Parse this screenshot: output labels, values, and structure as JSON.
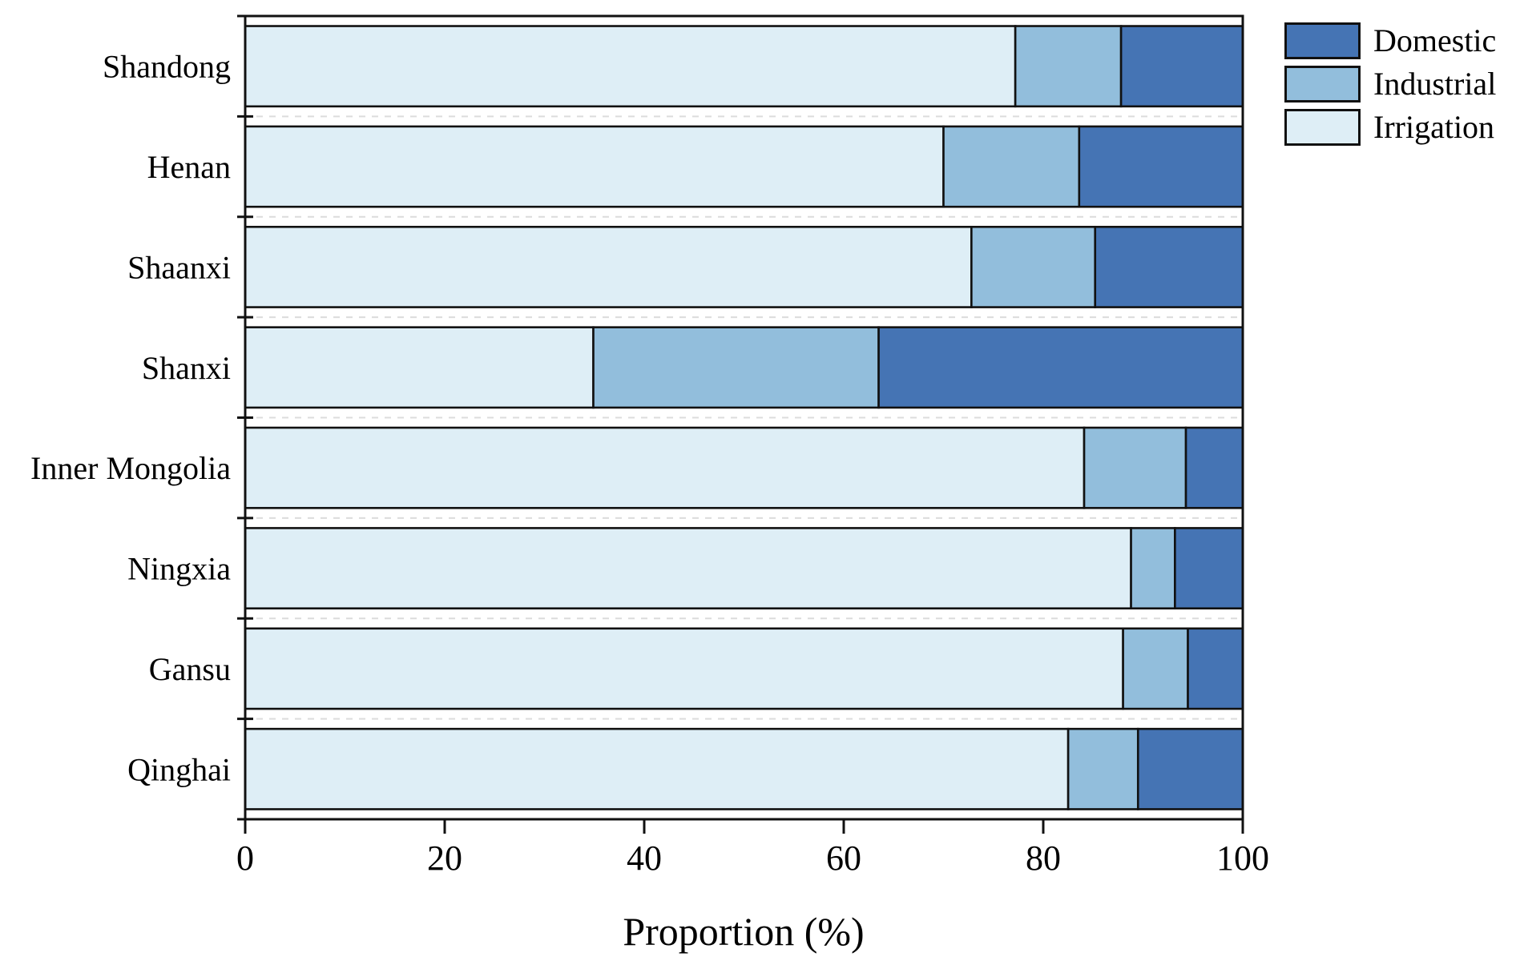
{
  "figure": {
    "background": "#ffffff",
    "axis_color": "#111111",
    "gridline_color": "#dcdcdc"
  },
  "chart_data": {
    "type": "bar",
    "orientation": "horizontal",
    "stacked": true,
    "title": "",
    "xlabel": "Proportion (%)",
    "ylabel": "",
    "xlim": [
      0,
      100
    ],
    "x_ticks": [
      "0",
      "20",
      "40",
      "60",
      "80",
      "100"
    ],
    "x_tick_values": [
      0,
      20,
      40,
      60,
      80,
      100
    ],
    "grid": "light dashed horizontal lines between category rows",
    "legend_position": "top-right outside plot",
    "legend_order": [
      "Domestic",
      "Industrial",
      "Irrigation"
    ],
    "bar_edge_color": "#111111",
    "categories": [
      "Shandong",
      "Henan",
      "Shaanxi",
      "Shanxi",
      "Inner Mongolia",
      "Ningxia",
      "Gansu",
      "Qinghai"
    ],
    "series": [
      {
        "name": "Irrigation",
        "color": "#DEEEF6",
        "values": [
          77.2,
          70.0,
          72.8,
          34.9,
          84.1,
          88.8,
          88.0,
          82.5
        ]
      },
      {
        "name": "Industrial",
        "color": "#92BEDC",
        "values": [
          10.6,
          13.6,
          12.4,
          28.6,
          10.2,
          4.4,
          6.5,
          7.0
        ]
      },
      {
        "name": "Domestic",
        "color": "#4574B4",
        "values": [
          12.2,
          16.4,
          14.8,
          36.5,
          5.7,
          6.8,
          5.5,
          10.5
        ]
      }
    ]
  }
}
